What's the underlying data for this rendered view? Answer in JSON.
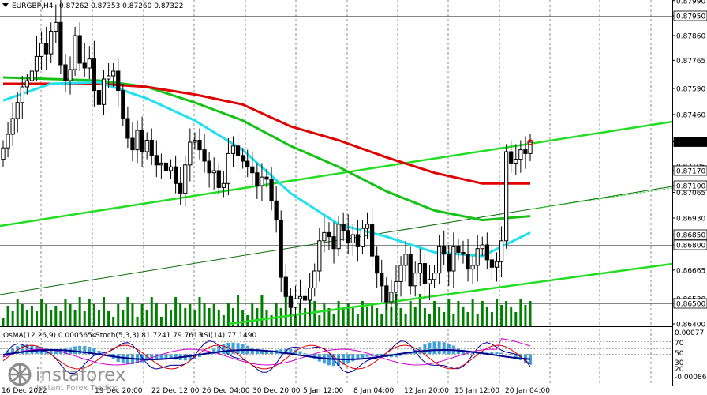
{
  "header": {
    "symbol": "EURGBP,H4",
    "ohlc": "0.87262 0.87353 0.87260 0.87322"
  },
  "indicator_header": {
    "osma": "OsMA(12,26,9) 0.0005654",
    "stoch": "Stoch(5,3,3) 81.7241 79.7613",
    "rsi": "RSI(14) 77.1490"
  },
  "brand": {
    "name": "instaforex",
    "tagline": "Instant Forex Trading"
  },
  "colors": {
    "bull": "#008000",
    "bear": "#000000",
    "ema_red": "#e00000",
    "ema_green": "#16c216",
    "ema_cyan": "#22e0f0",
    "channel": "#22dd22",
    "current_bg": "#000000",
    "osma": "#3aa0e0",
    "stoch_main": "#0000a0",
    "stoch_signal": "#e00000",
    "rsi": "#d000d0"
  },
  "chart_data": {
    "type": "candlestick",
    "timeframe": "H4",
    "symbol": "EURGBP",
    "ylim": [
      0.864,
      0.88
    ],
    "y_ticks": [
      "0.87990",
      "0.87950",
      "0.87860",
      "0.87765",
      "0.87590",
      "0.87460",
      "0.87322",
      "0.87195",
      "0.87170",
      "0.87100",
      "0.87065",
      "0.86930",
      "0.86850",
      "0.86800",
      "0.86665",
      "0.86530",
      "0.86500",
      "0.86400"
    ],
    "horizontal_levels": [
      0.8795,
      0.8717,
      0.871,
      0.8685,
      0.868,
      0.865
    ],
    "current_price": "0.87322",
    "x_ticks": [
      "16 Dec 2022",
      "19 Dec 20:00",
      "22 Dec 12:00",
      "26 Dec 04:00",
      "30 Dec 20:00",
      "5 Jan 12:00",
      "8 Jan 04:00",
      "12 Jan 20:00",
      "15 Jan 12:00",
      "20 Jan 04:00"
    ],
    "close_series": [
      0.8729,
      0.8736,
      0.8744,
      0.8752,
      0.876,
      0.8764,
      0.877,
      0.8778,
      0.8783,
      0.8779,
      0.8788,
      0.8792,
      0.8774,
      0.8764,
      0.8771,
      0.8786,
      0.8775,
      0.8772,
      0.8777,
      0.8758,
      0.8751,
      0.8765,
      0.8767,
      0.877,
      0.8758,
      0.8744,
      0.8734,
      0.8728,
      0.8738,
      0.8727,
      0.8733,
      0.8725,
      0.872,
      0.8721,
      0.8717,
      0.8719,
      0.8711,
      0.8706,
      0.872,
      0.8732,
      0.8733,
      0.8728,
      0.8722,
      0.8716,
      0.8717,
      0.8709,
      0.8711,
      0.8726,
      0.873,
      0.8725,
      0.8722,
      0.8719,
      0.8716,
      0.871,
      0.8714,
      0.8713,
      0.8702,
      0.8692,
      0.8663,
      0.8654,
      0.8648,
      0.8653,
      0.8654,
      0.8652,
      0.8658,
      0.8666,
      0.8682,
      0.8686,
      0.8684,
      0.8678,
      0.869,
      0.8687,
      0.8681,
      0.8685,
      0.8679,
      0.8688,
      0.869,
      0.8674,
      0.8665,
      0.8659,
      0.8651,
      0.8656,
      0.8661,
      0.8669,
      0.8675,
      0.8659,
      0.8665,
      0.867,
      0.866,
      0.8662,
      0.8665,
      0.8679,
      0.8675,
      0.8666,
      0.8679,
      0.8676,
      0.8675,
      0.8667,
      0.8669,
      0.8678,
      0.868,
      0.8672,
      0.8668,
      0.8671,
      0.8682,
      0.8727,
      0.8721,
      0.8723,
      0.8728,
      0.8726,
      0.8732
    ],
    "ema_red": [
      0.8762,
      0.8762,
      0.8762,
      0.876,
      0.8756,
      0.8751,
      0.874,
      0.8733,
      0.8724,
      0.8716,
      0.8711,
      0.8711
    ],
    "ema_green": [
      0.8766,
      0.8765,
      0.8764,
      0.876,
      0.8752,
      0.8743,
      0.873,
      0.8719,
      0.8707,
      0.8697,
      0.8692,
      0.8694
    ],
    "ema_cyan": [
      0.8753,
      0.8762,
      0.8763,
      0.8754,
      0.8743,
      0.8728,
      0.8706,
      0.869,
      0.8684,
      0.8676,
      0.8674,
      0.8686
    ],
    "indicators": {
      "osma_range": [
        -0.0008,
        0.0007
      ],
      "osma_current": 0.0005654,
      "stoch_main": 81.7241,
      "stoch_signal": 79.7613,
      "rsi": 77.149,
      "levels": [
        "70",
        "50",
        "30",
        "20"
      ]
    }
  }
}
